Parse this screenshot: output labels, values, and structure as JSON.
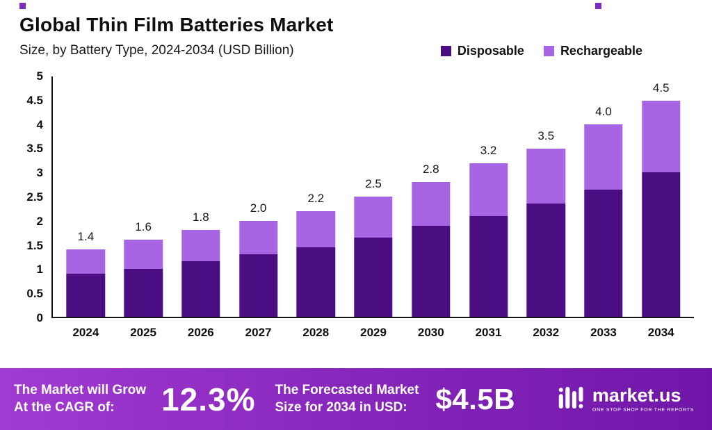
{
  "header": {
    "title": "Global Thin Film Batteries Market",
    "subtitle": "Size, by Battery Type, 2024-2034 (USD Billion)"
  },
  "legend": [
    {
      "label": "Disposable",
      "color": "#4b0e82"
    },
    {
      "label": "Rechargeable",
      "color": "#a865e3"
    }
  ],
  "chart_data": {
    "type": "bar",
    "stacked": true,
    "title": "Global Thin Film Batteries Market Size, by Battery Type, 2024-2034 (USD Billion)",
    "xlabel": "",
    "ylabel": "USD Billion",
    "ylim": [
      0,
      5
    ],
    "yticks": [
      "5",
      "4.5",
      "4",
      "3.5",
      "3",
      "2.5",
      "2",
      "1.5",
      "1",
      "0.5",
      "0"
    ],
    "grid": false,
    "legend_position": "top-right",
    "categories": [
      "2024",
      "2025",
      "2026",
      "2027",
      "2028",
      "2029",
      "2030",
      "2031",
      "2032",
      "2033",
      "2034"
    ],
    "series": [
      {
        "name": "Disposable",
        "color": "#4b0e82",
        "values": [
          0.9,
          1.0,
          1.15,
          1.3,
          1.45,
          1.65,
          1.9,
          2.1,
          2.35,
          2.65,
          3.0
        ]
      },
      {
        "name": "Rechargeable",
        "color": "#a865e3",
        "values": [
          0.5,
          0.6,
          0.65,
          0.7,
          0.75,
          0.85,
          0.9,
          1.1,
          1.15,
          1.35,
          1.5
        ]
      }
    ],
    "totals": [
      1.4,
      1.6,
      1.8,
      2.0,
      2.2,
      2.5,
      2.8,
      3.2,
      3.5,
      4.0,
      4.5
    ],
    "total_labels": [
      "1.4",
      "1.6",
      "1.8",
      "2.0",
      "2.2",
      "2.5",
      "2.8",
      "3.2",
      "3.5",
      "4.0",
      "4.5"
    ]
  },
  "footer": {
    "cagr_label_line1": "The Market will Grow",
    "cagr_label_line2": "At the CAGR of:",
    "cagr_value": "12.3%",
    "forecast_label_line1": "The Forecasted Market",
    "forecast_label_line2": "Size for 2034 in USD:",
    "forecast_value": "$4.5B",
    "brand": {
      "name": "market.us",
      "tagline": "ONE STOP SHOP FOR THE REPORTS"
    }
  }
}
